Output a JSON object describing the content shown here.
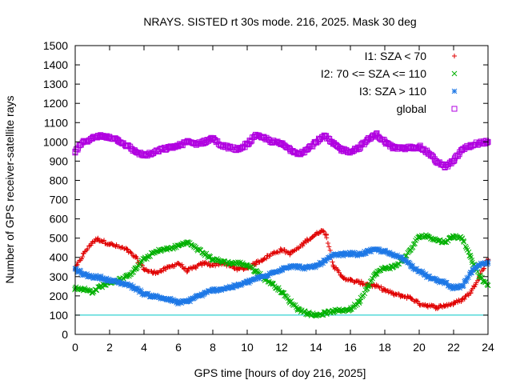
{
  "chart_data": {
    "type": "scatter",
    "title": "NRAYS. SISTED rt 30s mode. 216, 2025. Mask 30 deg",
    "xlabel": "GPS time [hours of doy 216, 2025]",
    "ylabel": "Number of GPS receiver-satellite rays",
    "xlim": [
      0,
      24
    ],
    "ylim": [
      0,
      1500
    ],
    "x_ticks": [
      0,
      2,
      4,
      6,
      8,
      10,
      12,
      14,
      16,
      18,
      20,
      22,
      24
    ],
    "y_ticks": [
      0,
      100,
      200,
      300,
      400,
      500,
      600,
      700,
      800,
      900,
      1000,
      1100,
      1200,
      1300,
      1400,
      1500
    ],
    "reference_line": {
      "y": 100,
      "color": "#00c8c8"
    },
    "legend_position": "top-right",
    "series": [
      {
        "name": "I1: SZA < 70",
        "color": "#e00000",
        "marker": "+",
        "x": [
          0,
          0.5,
          1,
          1.3,
          2,
          3,
          3.5,
          4,
          4.5,
          5,
          5.5,
          6,
          6.5,
          7,
          7.5,
          8,
          8.5,
          9,
          9.5,
          10,
          10.5,
          11,
          11.5,
          12,
          12.5,
          13,
          13.5,
          14,
          14.3,
          14.6,
          15,
          15.5,
          16,
          16.5,
          17,
          17.5,
          18,
          18.5,
          19,
          19.5,
          20,
          20.5,
          21,
          21.5,
          22,
          22.5,
          23,
          23.5,
          24
        ],
        "values": [
          340,
          420,
          480,
          495,
          470,
          440,
          400,
          340,
          320,
          330,
          350,
          370,
          330,
          350,
          370,
          360,
          370,
          355,
          340,
          345,
          370,
          395,
          420,
          440,
          420,
          450,
          490,
          520,
          540,
          520,
          360,
          300,
          280,
          270,
          260,
          250,
          230,
          210,
          200,
          190,
          160,
          150,
          140,
          150,
          160,
          180,
          220,
          300,
          390
        ]
      },
      {
        "name": "I2: 70 <= SZA <= 110",
        "color": "#00b000",
        "marker": "x",
        "x": [
          0,
          0.5,
          1,
          1.5,
          2,
          2.5,
          3,
          3.5,
          4,
          4.5,
          5,
          5.5,
          6,
          6.5,
          7,
          7.5,
          8,
          8.5,
          9,
          9.5,
          10,
          10.5,
          11,
          11.5,
          12,
          12.5,
          13,
          13.5,
          14,
          14.5,
          15,
          15.5,
          16,
          16.5,
          17,
          17.5,
          18,
          18.5,
          19,
          19.5,
          20,
          20.5,
          21,
          21.5,
          22,
          22.5,
          23,
          23.5,
          24
        ],
        "values": [
          240,
          235,
          220,
          250,
          270,
          280,
          300,
          340,
          390,
          420,
          440,
          445,
          460,
          480,
          450,
          420,
          390,
          380,
          370,
          370,
          360,
          330,
          290,
          260,
          220,
          170,
          130,
          110,
          100,
          110,
          120,
          125,
          130,
          170,
          250,
          320,
          345,
          350,
          380,
          440,
          510,
          510,
          490,
          480,
          510,
          500,
          400,
          300,
          255
        ]
      },
      {
        "name": "I3: SZA > 110",
        "color": "#1e78e6",
        "marker": "*",
        "x": [
          0,
          0.5,
          1,
          1.5,
          2,
          2.5,
          3,
          3.5,
          4,
          4.5,
          5,
          5.5,
          6,
          6.5,
          7,
          7.5,
          8,
          8.5,
          9,
          9.5,
          10,
          10.5,
          11,
          11.5,
          12,
          12.5,
          13,
          13.5,
          14,
          14.5,
          15,
          15.5,
          16,
          16.5,
          17,
          17.5,
          18,
          18.5,
          19,
          19.5,
          20,
          20.5,
          21,
          21.5,
          22,
          22.5,
          23,
          23.5,
          24
        ],
        "values": [
          340,
          310,
          300,
          295,
          280,
          270,
          260,
          240,
          210,
          200,
          190,
          180,
          165,
          170,
          195,
          210,
          230,
          235,
          245,
          255,
          270,
          290,
          300,
          320,
          340,
          355,
          350,
          345,
          355,
          380,
          410,
          415,
          420,
          415,
          430,
          440,
          430,
          410,
          400,
          360,
          330,
          300,
          280,
          270,
          240,
          250,
          320,
          360,
          370
        ]
      },
      {
        "name": "global",
        "color": "#b000e0",
        "marker": "square",
        "x": [
          0,
          0.5,
          1,
          1.5,
          2,
          2.5,
          3,
          3.5,
          4,
          4.5,
          5,
          5.5,
          6,
          6.5,
          7,
          7.5,
          8,
          8.5,
          9,
          9.5,
          10,
          10.5,
          11,
          11.5,
          12,
          12.5,
          13,
          13.5,
          14,
          14.5,
          15,
          15.5,
          16,
          16.5,
          17,
          17.5,
          18,
          18.5,
          19,
          19.5,
          20,
          20.5,
          21,
          21.5,
          22,
          22.5,
          23,
          23.5,
          24
        ],
        "values": [
          950,
          1000,
          1020,
          1030,
          1025,
          1010,
          980,
          950,
          930,
          940,
          960,
          970,
          980,
          1000,
          990,
          1000,
          1020,
          980,
          970,
          960,
          990,
          1030,
          1020,
          1000,
          990,
          960,
          940,
          960,
          1000,
          1030,
          990,
          960,
          950,
          970,
          1010,
          1040,
          1000,
          970,
          965,
          970,
          975,
          945,
          900,
          870,
          900,
          960,
          980,
          995,
          1000
        ]
      }
    ]
  }
}
